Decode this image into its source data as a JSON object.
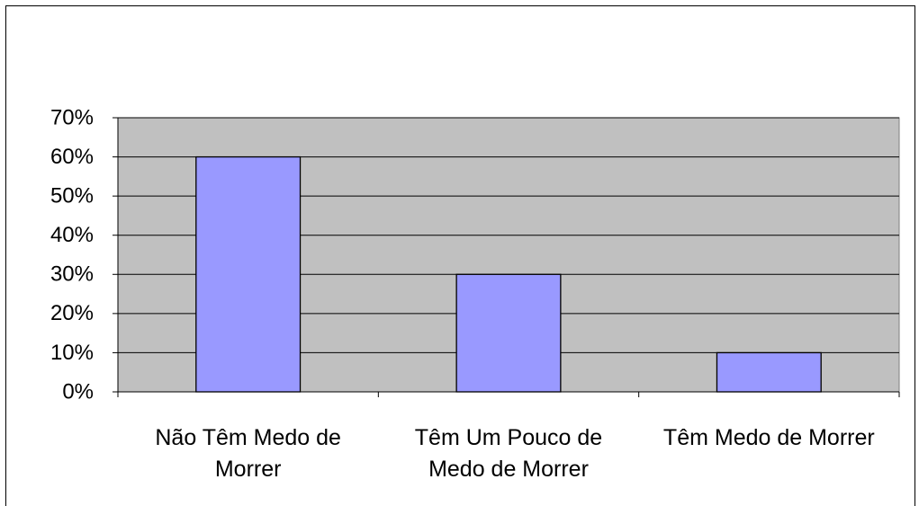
{
  "chart_data": {
    "type": "bar",
    "categories": [
      "Não Têm Medo de Morrer",
      "Têm Um Pouco de Medo de Morrer",
      "Têm Medo de Morrer"
    ],
    "values": [
      60,
      30,
      10
    ],
    "color": "#9999ff",
    "plot_background": "#c0c0c0",
    "ylim": [
      0,
      70
    ],
    "yticks": [
      {
        "value": 0,
        "label": "0%"
      },
      {
        "value": 10,
        "label": "10%"
      },
      {
        "value": 20,
        "label": "20%"
      },
      {
        "value": 30,
        "label": "30%"
      },
      {
        "value": 40,
        "label": "40%"
      },
      {
        "value": 50,
        "label": "50%"
      },
      {
        "value": 60,
        "label": "60%"
      },
      {
        "value": 70,
        "label": "70%"
      }
    ],
    "grid": true
  }
}
